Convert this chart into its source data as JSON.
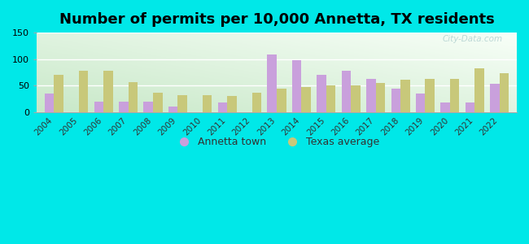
{
  "title": "Number of permits per 10,000 Annetta, TX residents",
  "years": [
    2004,
    2005,
    2006,
    2007,
    2008,
    2009,
    2010,
    2011,
    2012,
    2013,
    2014,
    2015,
    2016,
    2017,
    2018,
    2019,
    2020,
    2021,
    2022
  ],
  "annetta": [
    35,
    0,
    20,
    20,
    20,
    10,
    0,
    18,
    0,
    108,
    98,
    70,
    78,
    63,
    45,
    35,
    18,
    18,
    54
  ],
  "texas": [
    70,
    78,
    78,
    57,
    36,
    32,
    32,
    30,
    36,
    44,
    47,
    51,
    51,
    55,
    61,
    63,
    63,
    82,
    73
  ],
  "annetta_color": "#c9a0dc",
  "texas_color": "#c8c87a",
  "ylim": [
    0,
    150
  ],
  "yticks": [
    0,
    50,
    100,
    150
  ],
  "legend_annetta": "Annetta town",
  "legend_texas": "Texas average",
  "bg_outer": "#00e8e8",
  "watermark": "City-Data.com",
  "bar_width": 0.38,
  "title_fontsize": 13,
  "tick_fontsize": 7.5
}
